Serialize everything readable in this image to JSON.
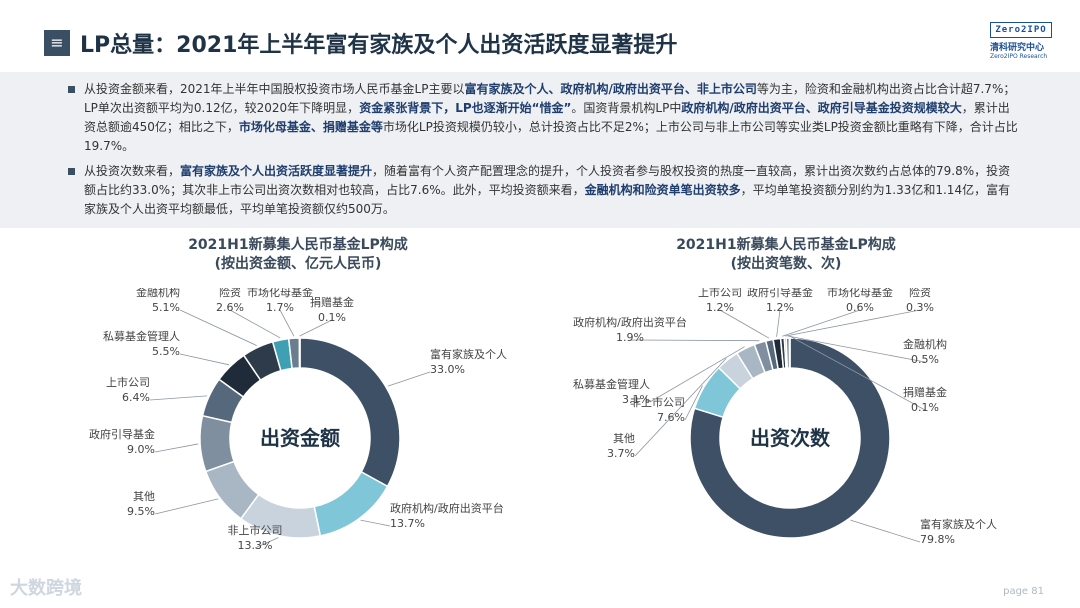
{
  "header": {
    "menu_icon": "≡",
    "title": "LP总量：2021年上半年富有家族及个人出资活跃度显著提升",
    "logo_box": "Zero2IPO",
    "logo_cn": "清科研究中心",
    "logo_en": "Zero2IPO Research"
  },
  "bullets": [
    {
      "segments": [
        {
          "t": "从投资金额来看，2021年上半年中国股权投资市场人民币基金LP主要以",
          "b": false
        },
        {
          "t": "富有家族及个人、政府机构/政府出资平台、非上市公司",
          "b": true
        },
        {
          "t": "等为主，险资和金融机构出资占比合计超7.7%；LP单次出资额平均为0.12亿，较2020年下降明显，",
          "b": false
        },
        {
          "t": "资金紧张背景下，LP也逐渐开始“惜金”",
          "b": true
        },
        {
          "t": "。国资背景机构LP中",
          "b": false
        },
        {
          "t": "政府机构/政府出资平台、政府引导基金投资规模较大",
          "b": true
        },
        {
          "t": "，累计出资总额逾450亿；相比之下，",
          "b": false
        },
        {
          "t": "市场化母基金、捐赠基金等",
          "b": true
        },
        {
          "t": "市场化LP投资规模仍较小，总计投资占比不足2%；上市公司与非上市公司等实业类LP投资金额比重略有下降，合计占比19.7%。",
          "b": false
        }
      ]
    },
    {
      "segments": [
        {
          "t": "从投资次数来看，",
          "b": false
        },
        {
          "t": "富有家族及个人出资活跃度显著提升",
          "b": true
        },
        {
          "t": "，随着富有个人资产配置理念的提升，个人投资者参与股权投资的热度一直较高，累计出资次数约占总体的79.8%，投资额占比约33.0%；其次非上市公司出资次数相对也较高，占比7.6%。此外，平均投资额来看，",
          "b": false
        },
        {
          "t": "金融机构和险资单笔出资较多",
          "b": true
        },
        {
          "t": "，平均单笔投资额分别约为1.33亿和1.14亿，富有家族及个人出资平均额最低，平均单笔投资额仅约500万。",
          "b": false
        }
      ]
    }
  ],
  "chart_data": [
    {
      "type": "pie",
      "donut": true,
      "title": "2021H1新募集人民币基金LP构成",
      "subtitle": "(按出资金额、亿元人民币)",
      "center_label": "出资金额",
      "slices": [
        {
          "name": "富有家族及个人",
          "value": 33.0,
          "label": "33.0%",
          "color": "#3e5066"
        },
        {
          "name": "政府机构/政府出资平台",
          "value": 13.7,
          "label": "13.7%",
          "color": "#7ec6d8"
        },
        {
          "name": "非上市公司",
          "value": 13.3,
          "label": "13.3%",
          "color": "#c8d3de"
        },
        {
          "name": "其他",
          "value": 9.5,
          "label": "9.5%",
          "color": "#a9b6c4"
        },
        {
          "name": "政府引导基金",
          "value": 9.0,
          "label": "9.0%",
          "color": "#7f8fa0"
        },
        {
          "name": "上市公司",
          "value": 6.4,
          "label": "6.4%",
          "color": "#56687c"
        },
        {
          "name": "私募基金管理人",
          "value": 5.5,
          "label": "5.5%",
          "color": "#1f2b38"
        },
        {
          "name": "金融机构",
          "value": 5.1,
          "label": "5.1%",
          "color": "#2e3b4a"
        },
        {
          "name": "险资",
          "value": 2.6,
          "label": "2.6%",
          "color": "#3fa0b4"
        },
        {
          "name": "市场化母基金",
          "value": 1.7,
          "label": "1.7%",
          "color": "#6a7d91"
        },
        {
          "name": "捐赠基金",
          "value": 0.1,
          "label": "0.1%",
          "color": "#9fb0c1"
        }
      ]
    },
    {
      "type": "pie",
      "donut": true,
      "title": "2021H1新募集人民币基金LP构成",
      "subtitle": "(按出资笔数、次)",
      "center_label": "出资次数",
      "slices": [
        {
          "name": "富有家族及个人",
          "value": 79.8,
          "label": "79.8%",
          "color": "#3e5066"
        },
        {
          "name": "非上市公司",
          "value": 7.6,
          "label": "7.6%",
          "color": "#7ec6d8"
        },
        {
          "name": "其他",
          "value": 3.7,
          "label": "3.7%",
          "color": "#c8d3de"
        },
        {
          "name": "私募基金管理人",
          "value": 3.1,
          "label": "3.1%",
          "color": "#a9b6c4"
        },
        {
          "name": "政府机构/政府出资平台",
          "value": 1.9,
          "label": "1.9%",
          "color": "#7f8fa0"
        },
        {
          "name": "上市公司",
          "value": 1.2,
          "label": "1.2%",
          "color": "#56687c"
        },
        {
          "name": "政府引导基金",
          "value": 1.2,
          "label": "1.2%",
          "color": "#1f2b38"
        },
        {
          "name": "市场化母基金",
          "value": 0.6,
          "label": "0.6%",
          "color": "#2e3b4a"
        },
        {
          "name": "险资",
          "value": 0.3,
          "label": "0.3%",
          "color": "#3fa0b4"
        },
        {
          "name": "金融机构",
          "value": 0.5,
          "label": "0.5%",
          "color": "#6a7d91"
        },
        {
          "name": "捐赠基金",
          "value": 0.1,
          "label": "0.1%",
          "color": "#9fb0c1"
        }
      ]
    }
  ],
  "footer": {
    "brand": "大数跨境",
    "page": "page  81"
  }
}
